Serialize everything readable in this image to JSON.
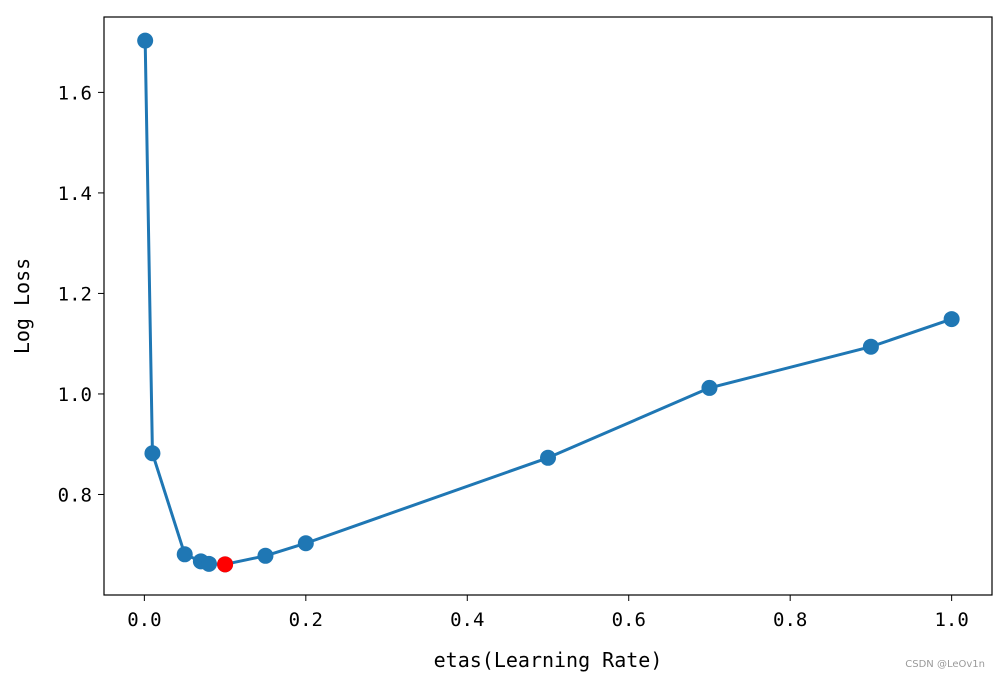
{
  "chart_data": {
    "type": "line",
    "title": "",
    "xlabel": "etas(Learning Rate)",
    "ylabel": "Log Loss",
    "xlim": [
      -0.05,
      1.05
    ],
    "ylim": [
      0.6,
      1.75
    ],
    "x_ticks": [
      0.0,
      0.2,
      0.4,
      0.6,
      0.8,
      1.0
    ],
    "x_tick_labels": [
      "0.0",
      "0.2",
      "0.4",
      "0.6",
      "0.8",
      "1.0"
    ],
    "y_ticks": [
      0.8,
      1.0,
      1.2,
      1.4,
      1.6
    ],
    "y_tick_labels": [
      "0.8",
      "1.0",
      "1.2",
      "1.4",
      "1.6"
    ],
    "grid": false,
    "legend": "none",
    "series": [
      {
        "x": [
          0.001,
          0.01,
          0.05,
          0.07,
          0.08,
          0.1,
          0.15,
          0.2,
          0.5,
          0.7,
          0.9,
          1.0
        ],
        "values": [
          1.703,
          0.882,
          0.681,
          0.667,
          0.662,
          0.661,
          0.678,
          0.703,
          0.873,
          1.012,
          1.094,
          1.149
        ],
        "color": "#1f77b4"
      }
    ],
    "highlight": {
      "x": 0.1,
      "y": 0.661,
      "color": "#ff0000"
    }
  },
  "watermark": "CSDN @LeOv1n"
}
